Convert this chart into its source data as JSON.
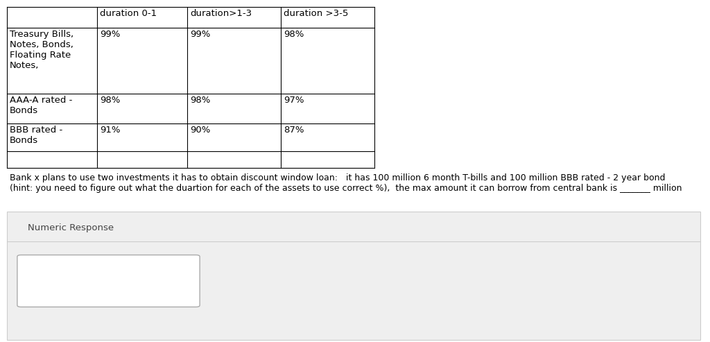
{
  "col_headers": [
    "",
    "duration 0-1",
    "duration>1-3",
    "duration >3-5"
  ],
  "rows": [
    [
      "Treasury Bills,\nNotes, Bonds,\nFloating Rate\nNotes,",
      "99%",
      "99%",
      "98%"
    ],
    [
      "AAA-A rated -\nBonds",
      "98%",
      "98%",
      "97%"
    ],
    [
      "BBB rated -\nBonds",
      "91%",
      "90%",
      "87%"
    ],
    [
      "",
      "",
      "",
      ""
    ]
  ],
  "paragraph_line1": "Bank x plans to use two investments it has to obtain discount window loan:   it has 100 million 6 month T-bills and 100 million BBB rated - 2 year bond",
  "paragraph_line2": "(hint: you need to figure out what the duartion for each of the assets to use correct %),  the max amount it can borrow from central bank is _______ million",
  "numeric_response_label": "Numeric Response",
  "bg_color": "#ffffff",
  "response_section_bg": "#efefef",
  "font_size": 9.5,
  "header_font_size": 9.5
}
